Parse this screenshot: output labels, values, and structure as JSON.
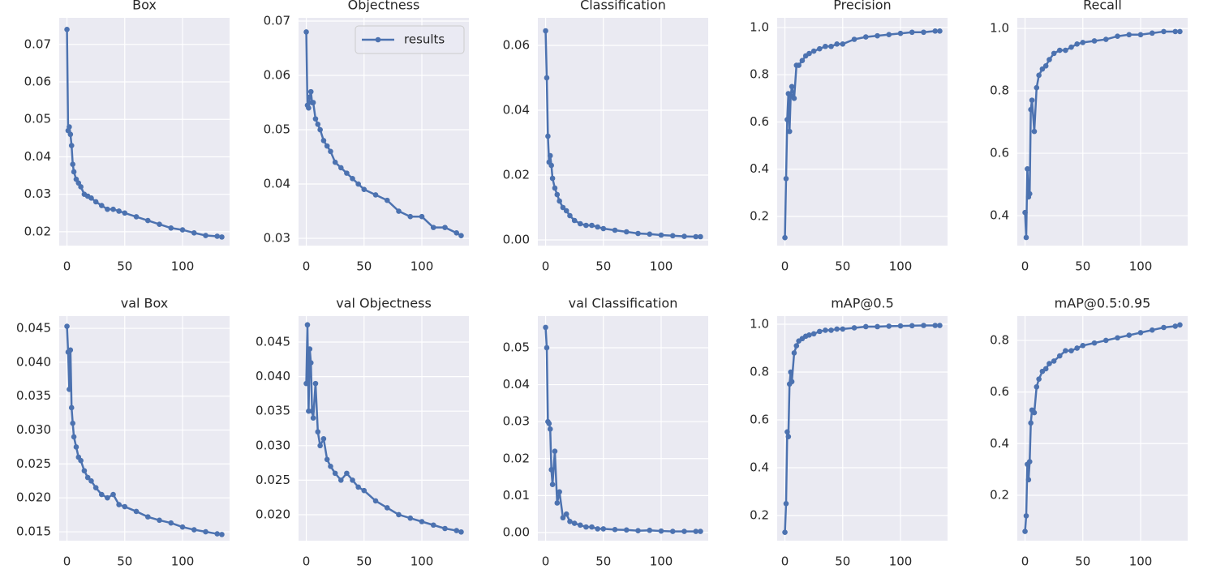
{
  "chart_data": [
    {
      "type": "line",
      "title": "Box",
      "x": [
        0,
        1,
        2,
        3,
        4,
        5,
        6,
        8,
        10,
        12,
        15,
        18,
        21,
        25,
        30,
        35,
        40,
        45,
        50,
        60,
        70,
        80,
        90,
        100,
        110,
        120,
        130,
        134
      ],
      "series": [
        {
          "name": "results",
          "color": "#4c72b0",
          "values": [
            0.074,
            0.047,
            0.048,
            0.046,
            0.043,
            0.038,
            0.036,
            0.034,
            0.033,
            0.032,
            0.03,
            0.0295,
            0.029,
            0.028,
            0.027,
            0.026,
            0.026,
            0.0255,
            0.025,
            0.024,
            0.023,
            0.022,
            0.021,
            0.0205,
            0.0197,
            0.019,
            0.0188,
            0.0186
          ]
        }
      ],
      "xlim": [
        -6.7,
        140.7
      ],
      "ylim": [
        0.0163,
        0.0771
      ],
      "xticks": [
        0,
        50,
        100
      ],
      "yticks": [
        0.02,
        0.03,
        0.04,
        0.05,
        0.06,
        0.07
      ],
      "grid": true
    },
    {
      "type": "line",
      "title": "Objectness",
      "x": [
        0,
        1,
        2,
        3,
        4,
        5,
        6,
        8,
        10,
        12,
        15,
        18,
        21,
        25,
        30,
        35,
        40,
        45,
        50,
        60,
        70,
        80,
        90,
        100,
        110,
        120,
        130,
        134
      ],
      "series": [
        {
          "name": "results",
          "color": "#4c72b0",
          "values": [
            0.068,
            0.0545,
            0.054,
            0.056,
            0.057,
            0.055,
            0.055,
            0.052,
            0.051,
            0.05,
            0.048,
            0.047,
            0.046,
            0.044,
            0.043,
            0.042,
            0.041,
            0.04,
            0.039,
            0.038,
            0.037,
            0.035,
            0.034,
            0.034,
            0.032,
            0.032,
            0.031,
            0.0305
          ]
        }
      ],
      "xlim": [
        -6.7,
        140.7
      ],
      "ylim": [
        0.02866,
        0.0706
      ],
      "xticks": [
        0,
        50,
        100
      ],
      "yticks": [
        0.03,
        0.04,
        0.05,
        0.06,
        0.07
      ],
      "grid": true,
      "legend": "upper right"
    },
    {
      "type": "line",
      "title": "Classification",
      "x": [
        0,
        1,
        2,
        3,
        4,
        5,
        6,
        8,
        10,
        12,
        15,
        18,
        21,
        25,
        30,
        35,
        40,
        45,
        50,
        60,
        70,
        80,
        90,
        100,
        110,
        120,
        130,
        134
      ],
      "series": [
        {
          "name": "results",
          "color": "#4c72b0",
          "values": [
            0.0645,
            0.05,
            0.032,
            0.024,
            0.026,
            0.023,
            0.019,
            0.016,
            0.014,
            0.012,
            0.01,
            0.009,
            0.0075,
            0.006,
            0.005,
            0.0045,
            0.0045,
            0.004,
            0.0035,
            0.003,
            0.0025,
            0.002,
            0.0018,
            0.0015,
            0.0013,
            0.0011,
            0.001,
            0.001
          ]
        }
      ],
      "xlim": [
        -6.7,
        140.7
      ],
      "ylim": [
        -0.00175,
        0.0685
      ],
      "xticks": [
        0,
        50,
        100
      ],
      "yticks": [
        {
          "value": 0,
          "label": "0.00"
        },
        0.02,
        0.04,
        0.06
      ],
      "grid": true
    },
    {
      "type": "line",
      "title": "Precision",
      "x": [
        0,
        1,
        2,
        3,
        4,
        5,
        6,
        8,
        10,
        12,
        15,
        18,
        21,
        25,
        30,
        35,
        40,
        45,
        50,
        60,
        70,
        80,
        90,
        100,
        110,
        120,
        130,
        134
      ],
      "series": [
        {
          "name": "results",
          "color": "#4c72b0",
          "values": [
            0.11,
            0.36,
            0.61,
            0.72,
            0.56,
            0.71,
            0.75,
            0.7,
            0.84,
            0.84,
            0.86,
            0.88,
            0.89,
            0.9,
            0.91,
            0.92,
            0.92,
            0.93,
            0.93,
            0.95,
            0.96,
            0.965,
            0.97,
            0.975,
            0.98,
            0.98,
            0.985,
            0.985
          ]
        }
      ],
      "xlim": [
        -6.7,
        140.7
      ],
      "ylim": [
        0.0764,
        1.041
      ],
      "xticks": [
        0,
        50,
        100
      ],
      "yticks": [
        0.2,
        0.4,
        0.6,
        0.8,
        {
          "value": 1,
          "label": "1.0"
        }
      ],
      "grid": true
    },
    {
      "type": "line",
      "title": "Recall",
      "x": [
        0,
        1,
        2,
        3,
        4,
        5,
        6,
        8,
        10,
        12,
        15,
        18,
        21,
        25,
        30,
        35,
        40,
        45,
        50,
        60,
        70,
        80,
        90,
        100,
        110,
        120,
        130,
        134
      ],
      "series": [
        {
          "name": "results",
          "color": "#4c72b0",
          "values": [
            0.41,
            0.33,
            0.55,
            0.46,
            0.47,
            0.74,
            0.77,
            0.67,
            0.81,
            0.85,
            0.87,
            0.88,
            0.9,
            0.92,
            0.93,
            0.93,
            0.94,
            0.95,
            0.955,
            0.96,
            0.965,
            0.975,
            0.98,
            0.98,
            0.985,
            0.99,
            0.99,
            0.99
          ]
        }
      ],
      "xlim": [
        -6.7,
        140.7
      ],
      "ylim": [
        0.304,
        1.034
      ],
      "xticks": [
        0,
        50,
        100
      ],
      "yticks": [
        0.4,
        0.6,
        0.8,
        {
          "value": 1,
          "label": "1.0"
        }
      ],
      "grid": true
    },
    {
      "type": "line",
      "title": "val Box",
      "x": [
        0,
        1,
        2,
        3,
        4,
        5,
        6,
        8,
        10,
        12,
        15,
        18,
        21,
        25,
        30,
        35,
        40,
        45,
        50,
        60,
        70,
        80,
        90,
        100,
        110,
        120,
        130,
        134
      ],
      "series": [
        {
          "name": "results",
          "color": "#4c72b0",
          "values": [
            0.0453,
            0.0415,
            0.036,
            0.0418,
            0.0333,
            0.031,
            0.029,
            0.0275,
            0.026,
            0.0255,
            0.024,
            0.023,
            0.0225,
            0.0215,
            0.0205,
            0.02,
            0.0205,
            0.019,
            0.0187,
            0.018,
            0.0172,
            0.0167,
            0.0163,
            0.0157,
            0.0153,
            0.015,
            0.0147,
            0.0146
          ]
        }
      ],
      "xlim": [
        -6.7,
        140.7
      ],
      "ylim": [
        0.01369,
        0.0468
      ],
      "xticks": [
        0,
        50,
        100
      ],
      "yticks": [
        0.015,
        {
          "value": 0.02,
          "label": "0.020"
        },
        0.025,
        {
          "value": 0.03,
          "label": "0.030"
        },
        0.035,
        {
          "value": 0.04,
          "label": "0.040"
        },
        0.045
      ],
      "grid": true
    },
    {
      "type": "line",
      "title": "val Objectness",
      "x": [
        0,
        1,
        2,
        3,
        4,
        5,
        6,
        8,
        10,
        12,
        15,
        18,
        21,
        25,
        30,
        35,
        40,
        45,
        50,
        60,
        70,
        80,
        90,
        100,
        110,
        120,
        130,
        134
      ],
      "series": [
        {
          "name": "results",
          "color": "#4c72b0",
          "values": [
            0.039,
            0.0475,
            0.035,
            0.044,
            0.042,
            0.035,
            0.034,
            0.039,
            0.032,
            0.03,
            0.031,
            0.028,
            0.027,
            0.026,
            0.025,
            0.026,
            0.025,
            0.024,
            0.0235,
            0.022,
            0.021,
            0.02,
            0.0195,
            0.019,
            0.0185,
            0.018,
            0.0177,
            0.0175
          ]
        }
      ],
      "xlim": [
        -6.7,
        140.7
      ],
      "ylim": [
        0.01624,
        0.04876
      ],
      "xticks": [
        0,
        50,
        100
      ],
      "yticks": [
        {
          "value": 0.02,
          "label": "0.020"
        },
        0.025,
        {
          "value": 0.03,
          "label": "0.030"
        },
        0.035,
        {
          "value": 0.04,
          "label": "0.040"
        },
        0.045
      ],
      "grid": true
    },
    {
      "type": "line",
      "title": "val Classification",
      "x": [
        0,
        1,
        2,
        3,
        4,
        5,
        6,
        8,
        10,
        12,
        15,
        18,
        21,
        25,
        30,
        35,
        40,
        45,
        50,
        60,
        70,
        80,
        90,
        100,
        110,
        120,
        130,
        134
      ],
      "series": [
        {
          "name": "results",
          "color": "#4c72b0",
          "values": [
            0.0555,
            0.05,
            0.03,
            0.0295,
            0.028,
            0.017,
            0.013,
            0.022,
            0.008,
            0.011,
            0.004,
            0.005,
            0.003,
            0.0025,
            0.002,
            0.0015,
            0.0015,
            0.001,
            0.001,
            0.0008,
            0.0007,
            0.0005,
            0.0006,
            0.0004,
            0.0003,
            0.0003,
            0.0003,
            0.0003
          ]
        }
      ],
      "xlim": [
        -6.7,
        140.7
      ],
      "ylim": [
        -0.0022,
        0.05855
      ],
      "xticks": [
        0,
        50,
        100
      ],
      "yticks": [
        {
          "value": 0,
          "label": "0.00"
        },
        0.01,
        0.02,
        0.03,
        0.04,
        0.05
      ],
      "grid": true
    },
    {
      "type": "line",
      "title": "mAP@0.5",
      "x": [
        0,
        1,
        2,
        3,
        4,
        5,
        6,
        8,
        10,
        12,
        15,
        18,
        21,
        25,
        30,
        35,
        40,
        45,
        50,
        60,
        70,
        80,
        90,
        100,
        110,
        120,
        130,
        134
      ],
      "series": [
        {
          "name": "results",
          "color": "#4c72b0",
          "values": [
            0.13,
            0.25,
            0.55,
            0.53,
            0.75,
            0.8,
            0.76,
            0.88,
            0.91,
            0.93,
            0.94,
            0.95,
            0.955,
            0.96,
            0.97,
            0.975,
            0.975,
            0.98,
            0.98,
            0.985,
            0.99,
            0.99,
            0.992,
            0.993,
            0.994,
            0.995,
            0.995,
            0.995
          ]
        }
      ],
      "xlim": [
        -6.7,
        140.7
      ],
      "ylim": [
        0.095,
        1.034
      ],
      "xticks": [
        0,
        50,
        100
      ],
      "yticks": [
        0.2,
        0.4,
        0.6,
        0.8,
        {
          "value": 1,
          "label": "1.0"
        }
      ],
      "grid": true
    },
    {
      "type": "line",
      "title": "mAP@0.5:0.95",
      "x": [
        0,
        1,
        2,
        3,
        4,
        5,
        6,
        8,
        10,
        12,
        15,
        18,
        21,
        25,
        30,
        35,
        40,
        45,
        50,
        60,
        70,
        80,
        90,
        100,
        110,
        120,
        130,
        134
      ],
      "series": [
        {
          "name": "results",
          "color": "#4c72b0",
          "values": [
            0.06,
            0.12,
            0.32,
            0.26,
            0.33,
            0.48,
            0.53,
            0.52,
            0.62,
            0.65,
            0.68,
            0.69,
            0.71,
            0.72,
            0.74,
            0.76,
            0.76,
            0.77,
            0.78,
            0.79,
            0.8,
            0.81,
            0.82,
            0.83,
            0.84,
            0.85,
            0.855,
            0.86
          ]
        }
      ],
      "xlim": [
        -6.7,
        140.7
      ],
      "ylim": [
        0.024,
        0.894
      ],
      "xticks": [
        0,
        50,
        100
      ],
      "yticks": [
        0.2,
        0.4,
        0.6,
        0.8
      ],
      "grid": true
    }
  ]
}
